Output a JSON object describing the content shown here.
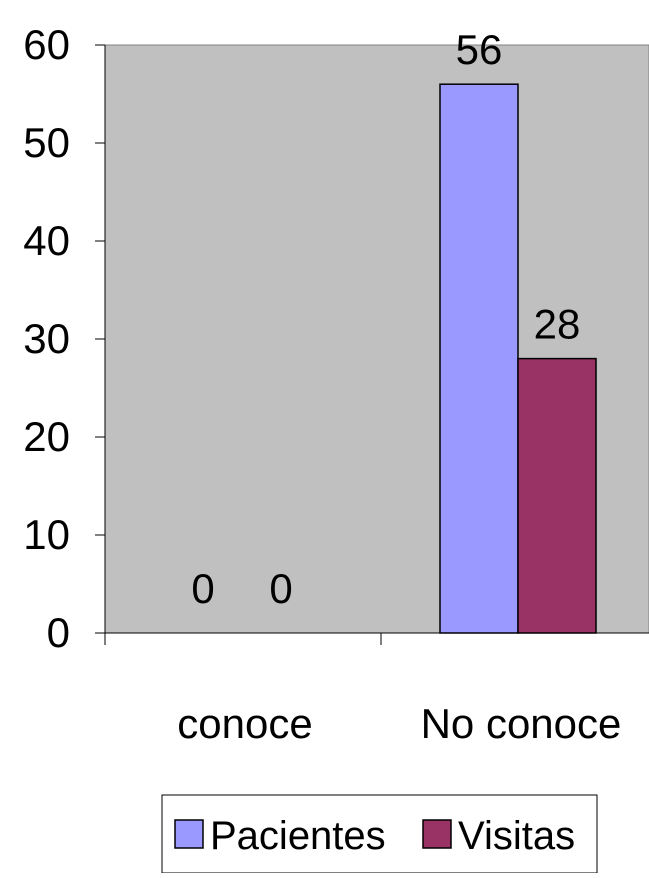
{
  "chart_data": {
    "type": "bar",
    "categories": [
      "conoce",
      "No conoce"
    ],
    "series": [
      {
        "name": "Pacientes",
        "values": [
          0,
          56
        ],
        "color": "#9999ff"
      },
      {
        "name": "Visitas",
        "values": [
          0,
          28
        ],
        "color": "#993366"
      }
    ],
    "data_labels": [
      [
        "0",
        "56"
      ],
      [
        "0",
        "28"
      ]
    ],
    "ylim": [
      0,
      60
    ],
    "yticks": [
      0,
      10,
      20,
      30,
      40,
      50,
      60
    ],
    "plot_background": "#c0c0c0",
    "grid": false,
    "legend_position": "bottom"
  }
}
